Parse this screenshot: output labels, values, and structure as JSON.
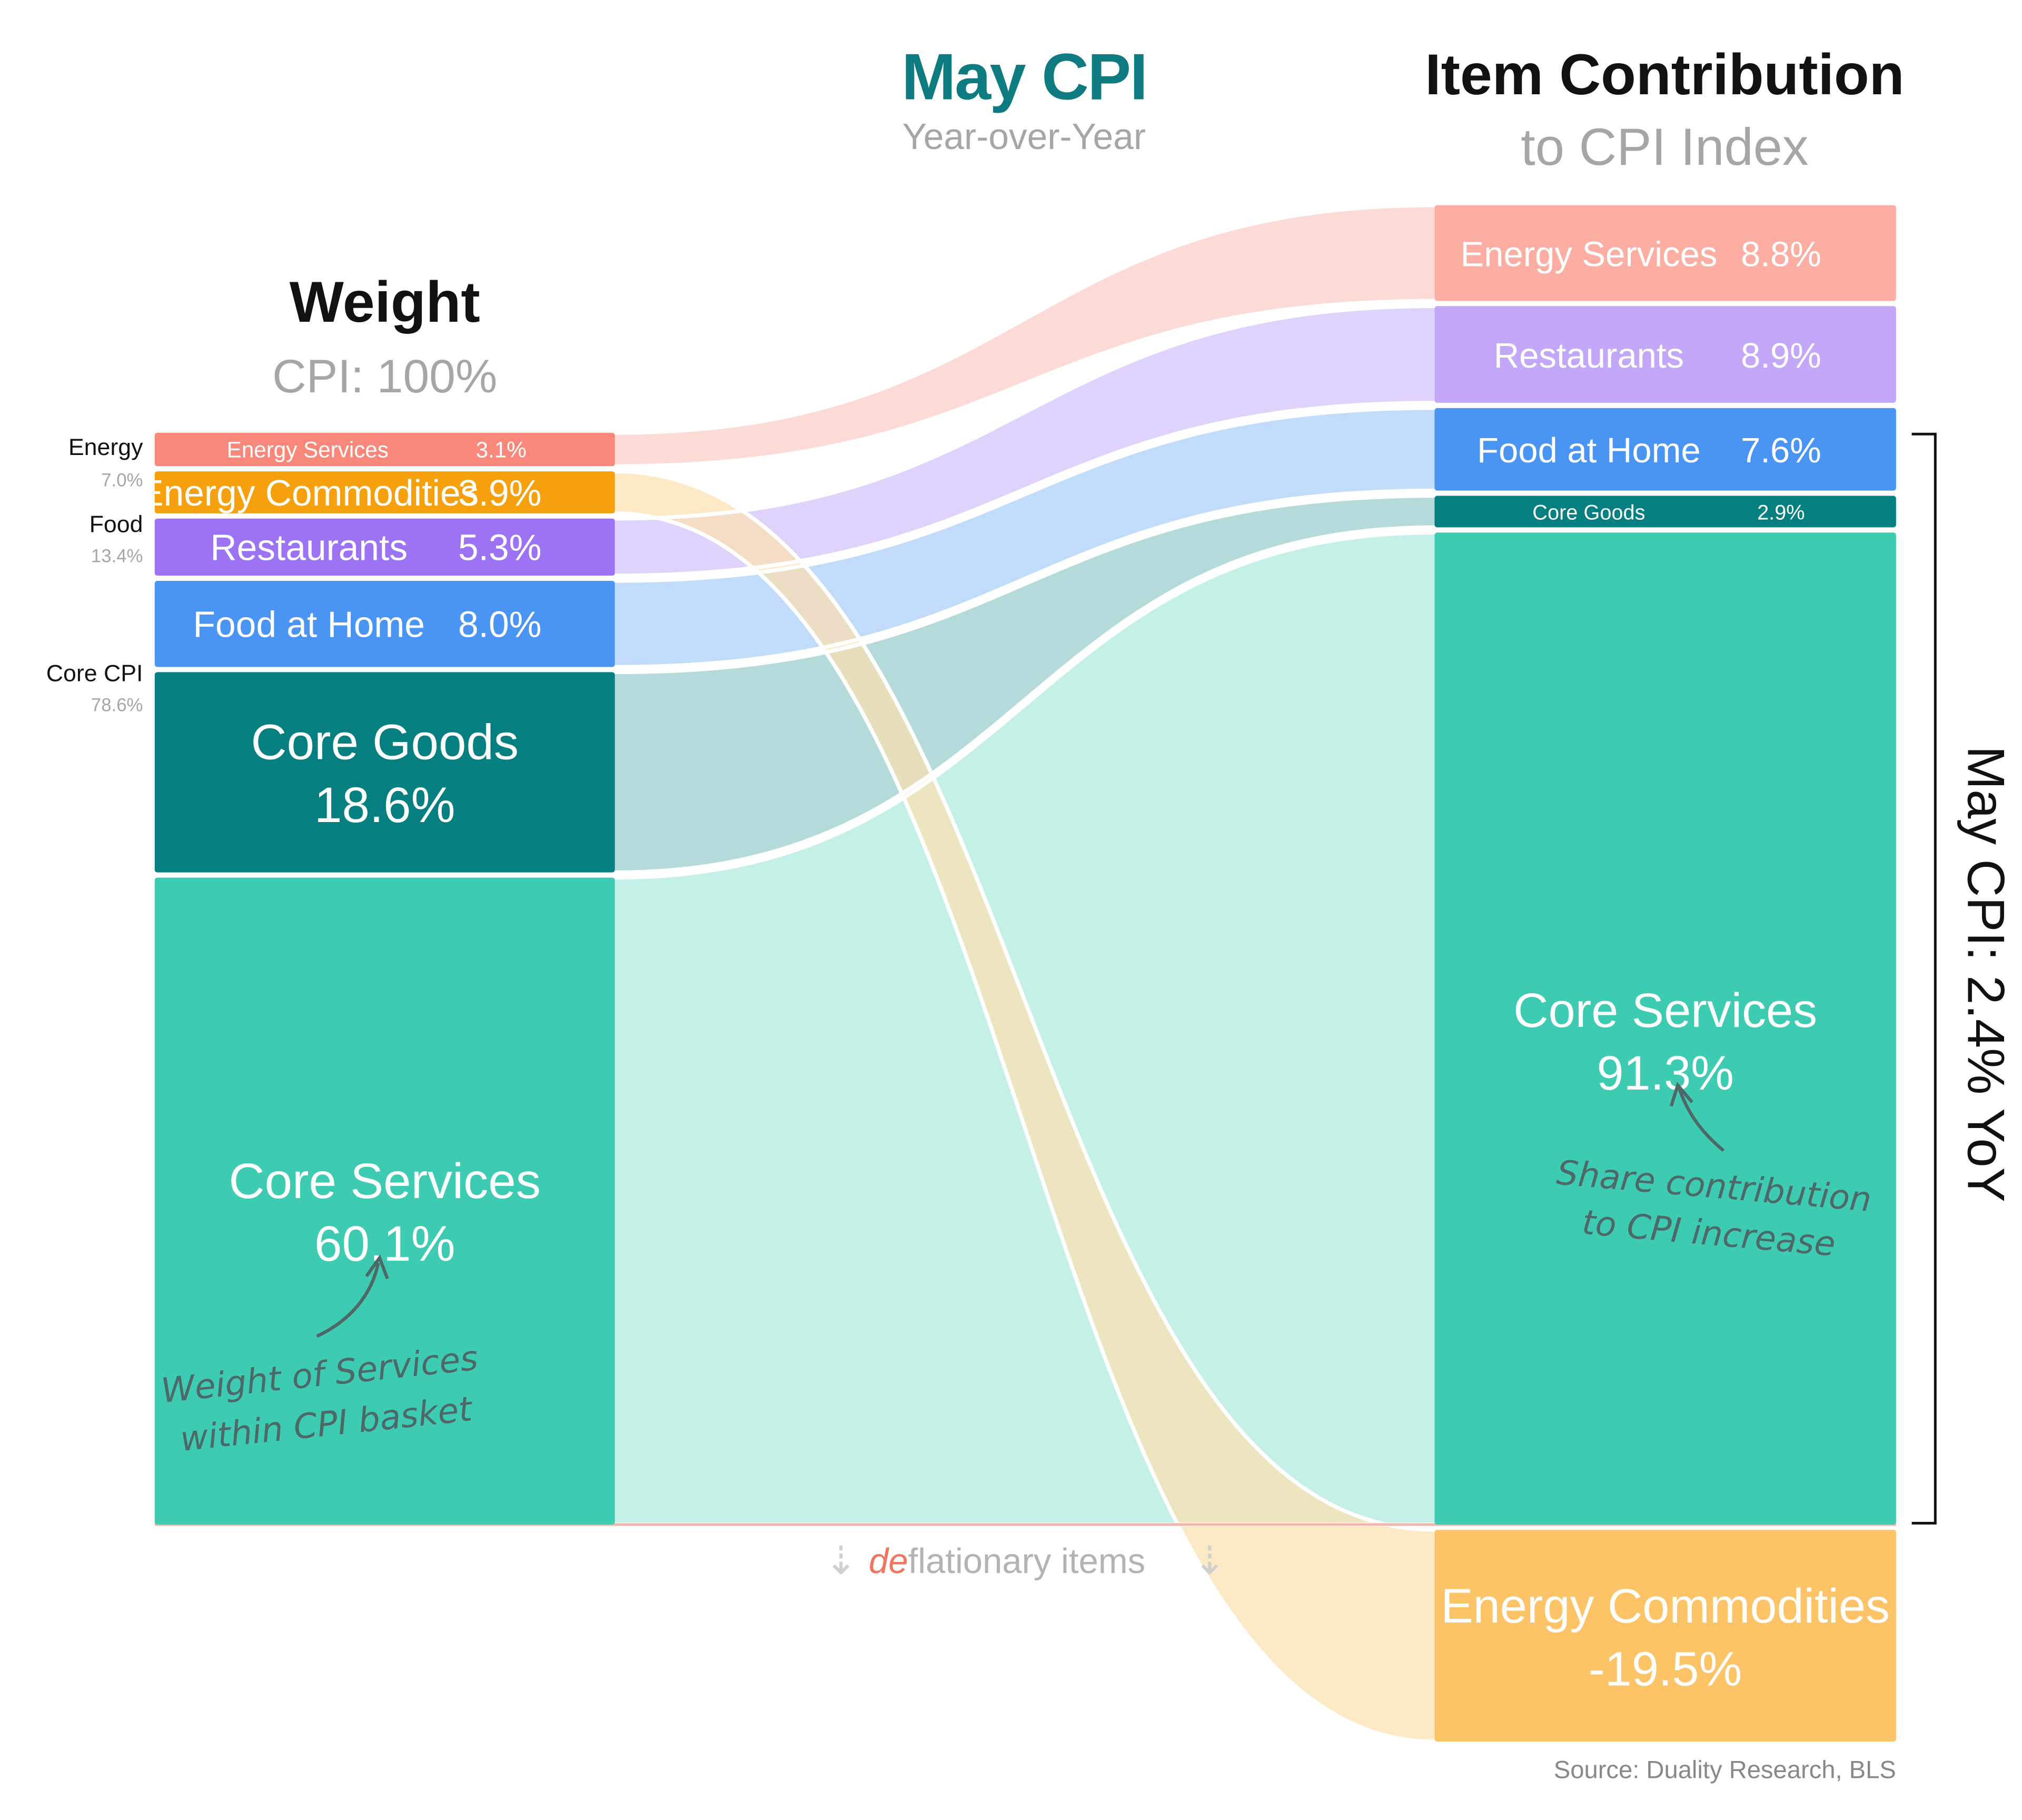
{
  "chart_data": {
    "type": "sankey",
    "title": "May CPI",
    "subtitle": "Year-over-Year",
    "left_header": {
      "title": "Weight",
      "subtitle": "CPI: 100%"
    },
    "right_header": {
      "title": "Item Contribution",
      "subtitle": "to CPI Index"
    },
    "groups": [
      {
        "label": "Energy",
        "value": "7.0%"
      },
      {
        "label": "Food",
        "value": "13.4%"
      },
      {
        "label": "Core CPI",
        "value": "78.6%"
      }
    ],
    "items": [
      {
        "name": "Energy Services",
        "weight": 3.1,
        "weight_label": "3.1%",
        "contribution": 8.8,
        "contribution_label": "8.8%",
        "color": "#F9877A",
        "flow_color": "#FCD4CE"
      },
      {
        "name": "Energy Commodities",
        "weight": 3.9,
        "weight_label": "3.9%",
        "contribution": -19.5,
        "contribution_label": "-19.5%",
        "color": "#F5A00C",
        "flow_color": "#FCE0AE"
      },
      {
        "name": "Restaurants",
        "weight": 5.3,
        "weight_label": "5.3%",
        "contribution": 8.9,
        "contribution_label": "8.9%",
        "color": "#9D73F5",
        "flow_color": "#D9CBFB"
      },
      {
        "name": "Food at Home",
        "weight": 8.0,
        "weight_label": "8.0%",
        "contribution": 7.6,
        "contribution_label": "7.6%",
        "color": "#4A95F3",
        "flow_color": "#B6D5FA"
      },
      {
        "name": "Core Goods",
        "weight": 18.6,
        "weight_label": "18.6%",
        "contribution": 2.9,
        "contribution_label": "2.9%",
        "color": "#057F7F",
        "flow_color": "#A8D4D4"
      },
      {
        "name": "Core Services",
        "weight": 60.1,
        "weight_label": "60.1%",
        "contribution": 91.3,
        "contribution_label": "91.3%",
        "color": "#3DCBB1",
        "flow_color": "#BBEDE4"
      }
    ],
    "right_bar_colors": {
      "Energy Services": "#FDAEA3",
      "Restaurants": "#C3A7F8",
      "Food at Home": "#4A95F3",
      "Core Goods": "#057F7F",
      "Core Services": "#3DCBB1",
      "Energy Commodities": "#FCC466"
    },
    "bracket_label": "May CPI: 2.4% YoY",
    "deflationary": {
      "prefix": "de",
      "rest": "flationary items"
    },
    "annotations": {
      "left": [
        "Weight of Services",
        "within CPI basket"
      ],
      "right": [
        "Share contribution",
        "to CPI increase"
      ]
    },
    "source": "Source: Duality Research, BLS",
    "colors": {
      "title_teal": "#0E7B80",
      "grey_text": "#A6A6A6",
      "red_accent": "#F0745E",
      "annotation": "#4E6868"
    }
  }
}
